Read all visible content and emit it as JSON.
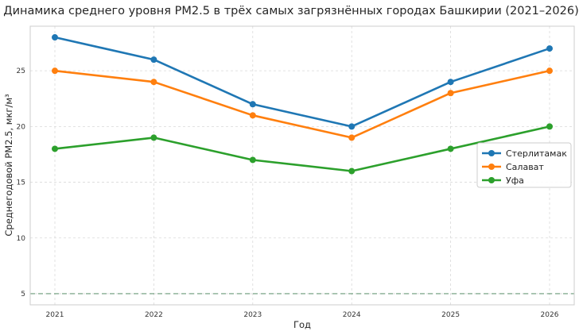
{
  "chart_data": {
    "type": "line",
    "title": "Динамика среднего уровня PM2.5 в трёх самых загрязнённых городах Башкирии (2021–2026)",
    "xlabel": "Год",
    "ylabel": "Среднегодовой PM2.5, мкг/м³",
    "categories": [
      "2021",
      "2022",
      "2023",
      "2024",
      "2025",
      "2026"
    ],
    "ylim": [
      4,
      29
    ],
    "yticks": [
      5,
      10,
      15,
      20,
      25
    ],
    "grid": true,
    "legend_position": "right",
    "reference_line": {
      "value": 5,
      "style": "dashed",
      "color": "#6a9a78"
    },
    "series": [
      {
        "name": "Стерлитамак",
        "color": "#1f77b4",
        "values": [
          28,
          26,
          22,
          20,
          24,
          27
        ]
      },
      {
        "name": "Салават",
        "color": "#ff7f0e",
        "values": [
          25,
          24,
          21,
          19,
          23,
          25
        ]
      },
      {
        "name": "Уфа",
        "color": "#2ca02c",
        "values": [
          18,
          19,
          17,
          16,
          18,
          20
        ]
      }
    ]
  }
}
